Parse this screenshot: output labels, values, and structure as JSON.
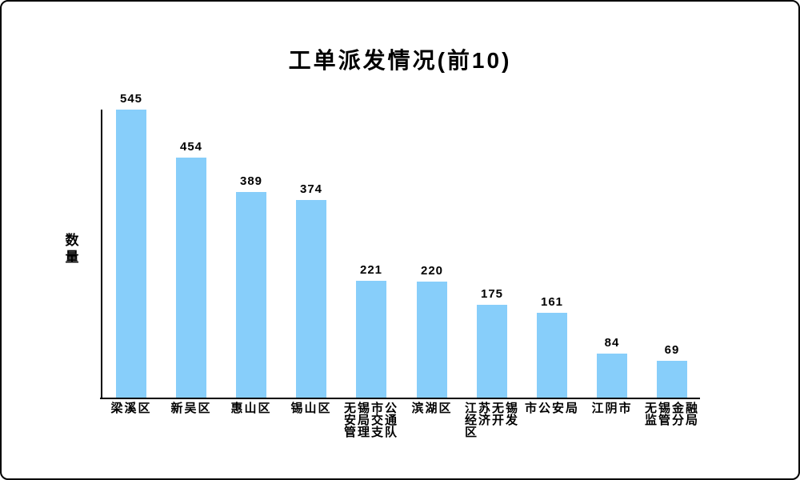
{
  "window": {
    "background": "#ffffff",
    "border_color": "#000000"
  },
  "chart_data": {
    "type": "bar",
    "title": "工单派发情况(前10)",
    "xlabel": "",
    "ylabel": "数量",
    "categories": [
      "梁溪区",
      "新吴区",
      "惠山区",
      "锡山区",
      "无锡市公安局交通管理支队",
      "滨湖区",
      "江苏无锡经济开发区",
      "市公安局",
      "江阴市",
      "无锡金融监管分局"
    ],
    "category_lines": [
      [
        "梁溪区"
      ],
      [
        "新吴区"
      ],
      [
        "惠山区"
      ],
      [
        "锡山区"
      ],
      [
        "无锡市公",
        "安局交通",
        "管理支队"
      ],
      [
        "滨湖区"
      ],
      [
        "江苏无锡",
        "经济开发",
        "区"
      ],
      [
        "市公安局"
      ],
      [
        "江阴市"
      ],
      [
        "无锡金融",
        "监管分局"
      ]
    ],
    "values": [
      545,
      454,
      389,
      374,
      221,
      220,
      175,
      161,
      84,
      69
    ],
    "ylim": [
      0,
      545
    ],
    "grid": false,
    "legend": null,
    "value_labels": true,
    "bar_color": "#87CEFA",
    "value_label_color": "#000000",
    "axis_color": "#000000",
    "title_color": "#000000"
  }
}
